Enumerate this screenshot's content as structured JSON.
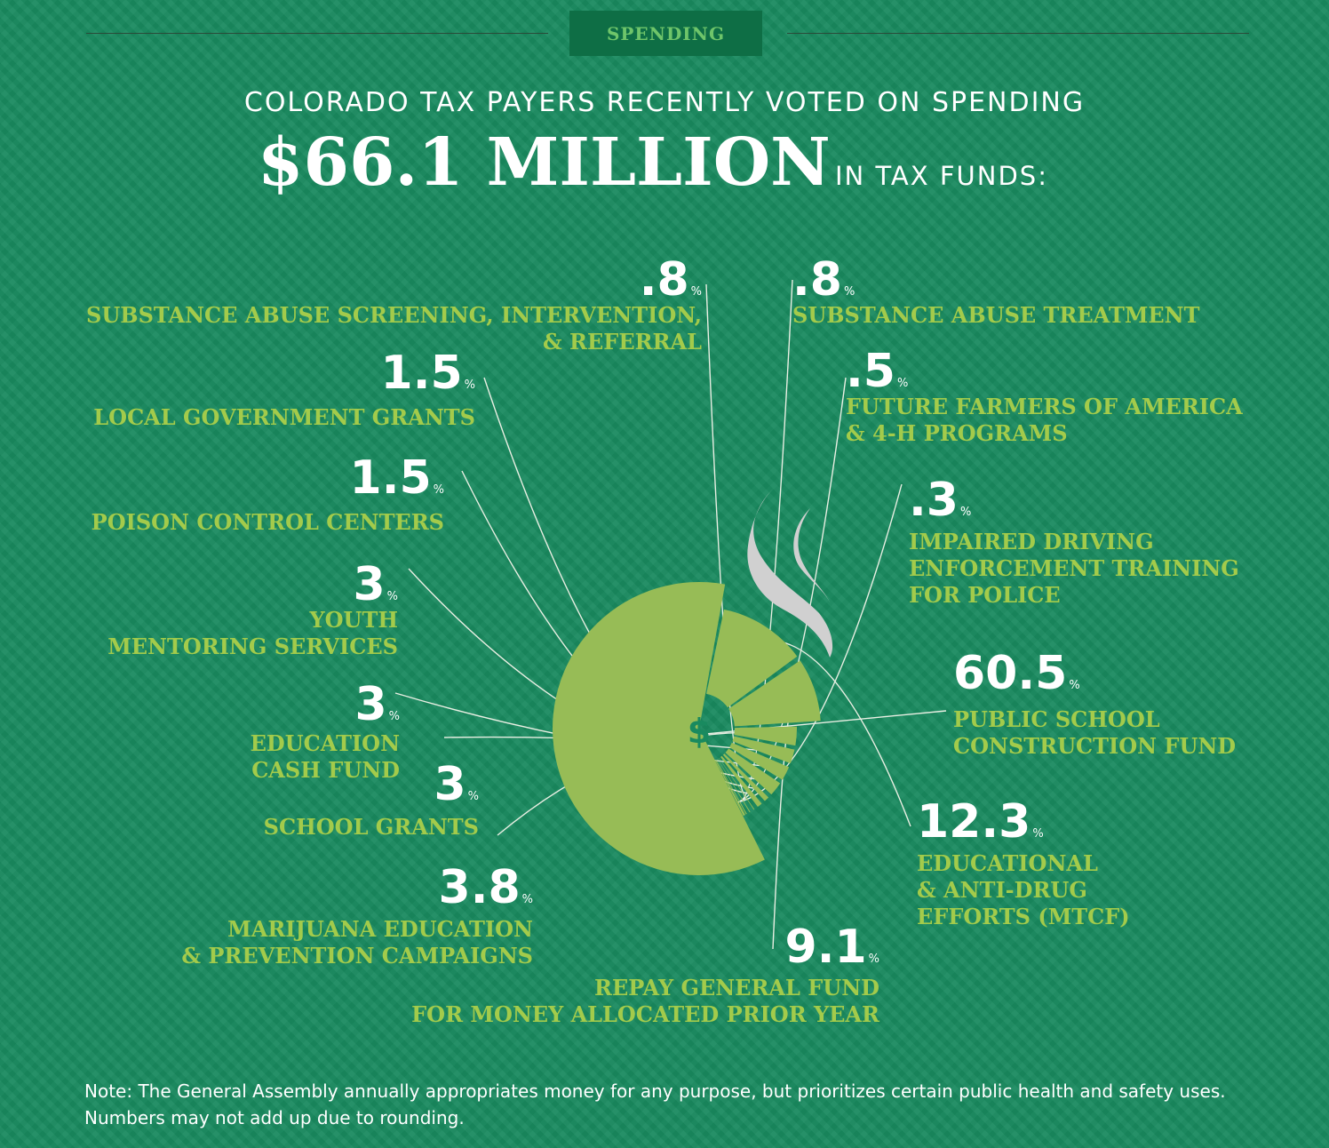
{
  "section_label": "SPENDING",
  "headline": "COLORADO TAX PAYERS RECENTLY VOTED ON SPENDING",
  "amount": "$66.1 MILLION",
  "amount_suffix": "IN TAX FUNDS:",
  "percent_unit": "%",
  "center_symbol": "$",
  "chart_data": {
    "type": "pie",
    "categories": [
      "PUBLIC SCHOOL CONSTRUCTION FUND",
      "EDUCATIONAL & ANTI-DRUG EFFORTS (MTCF)",
      "REPAY GENERAL FUND FOR MONEY ALLOCATED PRIOR YEAR",
      "MARIJUANA EDUCATION & PREVENTION CAMPAIGNS",
      "SCHOOL GRANTS",
      "EDUCATION CASH FUND",
      "YOUTH MENTORING SERVICES",
      "POISON CONTROL CENTERS",
      "LOCAL GOVERNMENT GRANTS",
      "SUBSTANCE ABUSE SCREENING, INTERVENTION, & REFERRAL",
      "SUBSTANCE ABUSE TREATMENT",
      "FUTURE FARMERS OF AMERICA & 4-H PROGRAMS",
      "IMPAIRED DRIVING ENFORCEMENT TRAINING FOR POLICE"
    ],
    "values": [
      60.5,
      12.3,
      9.1,
      3.8,
      3,
      3,
      3,
      1.5,
      1.5,
      0.8,
      0.8,
      0.5,
      0.3
    ],
    "value_labels": [
      "60.5",
      "12.3",
      "9.1",
      "3.8",
      "3",
      "3",
      "3",
      "1.5",
      "1.5",
      ".8",
      ".8",
      ".5",
      ".3"
    ],
    "label_lines": [
      [
        "PUBLIC SCHOOL",
        "CONSTRUCTION FUND"
      ],
      [
        "EDUCATIONAL",
        "& ANTI-DRUG",
        "EFFORTS (MTCF)"
      ],
      [
        "REPAY GENERAL FUND",
        "FOR MONEY ALLOCATED PRIOR YEAR"
      ],
      [
        "MARIJUANA EDUCATION",
        "& PREVENTION CAMPAIGNS"
      ],
      [
        "SCHOOL GRANTS"
      ],
      [
        "EDUCATION",
        "CASH FUND"
      ],
      [
        "YOUTH",
        "MENTORING SERVICES"
      ],
      [
        "POISON CONTROL CENTERS"
      ],
      [
        "LOCAL GOVERNMENT GRANTS"
      ],
      [
        "SUBSTANCE ABUSE SCREENING, INTERVENTION,",
        "& REFERRAL"
      ],
      [
        "SUBSTANCE ABUSE TREATMENT"
      ],
      [
        "FUTURE FARMERS OF AMERICA",
        "& 4-H PROGRAMS"
      ],
      [
        "IMPAIRED DRIVING",
        "ENFORCEMENT TRAINING",
        "FOR POLICE"
      ]
    ],
    "unit": "%",
    "colors": {
      "slice": "#97bc56",
      "label": "#a3cb4b",
      "value": "#ffffff",
      "leader": "#e9efe3",
      "smoke": "#d0d0d0"
    }
  },
  "note": "Note: The General Assembly annually appropriates money for any purpose, but prioritizes certain public health and safety uses. Numbers may not add up due to rounding."
}
